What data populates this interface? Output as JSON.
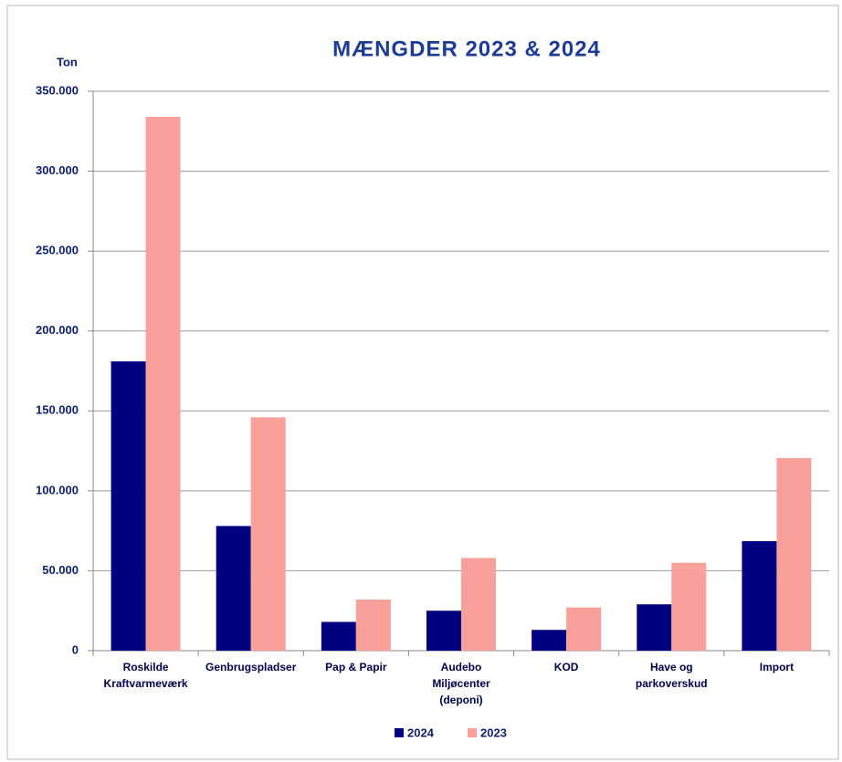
{
  "chart_data": {
    "type": "bar",
    "title": "MÆNGDER 2023 & 2024",
    "y_label": "Ton",
    "categories": [
      "Roskilde\nKraftvarmeværk",
      "Genbrugspladser",
      "Pap & Papir",
      "Audebo\nMiljøcenter\n(deponi)",
      "KOD",
      "Have og\nparkoverskud",
      "Import"
    ],
    "series": [
      {
        "name": "2024",
        "color": "#000080",
        "values": [
          181000,
          78000,
          18000,
          25000,
          13000,
          29000,
          68500
        ]
      },
      {
        "name": "2023",
        "color": "#f9a09a",
        "values": [
          334000,
          146000,
          32000,
          58000,
          27000,
          55000,
          120500
        ]
      }
    ],
    "ylim": [
      0,
      350000
    ],
    "yticks": [
      0,
      {
        "value": 50000,
        "label": "50.000"
      },
      {
        "value": 100000,
        "label": "100.000"
      },
      {
        "value": 150000,
        "label": "150.000"
      },
      {
        "value": 200000,
        "label": "200.000"
      },
      {
        "value": 250000,
        "label": "250.000"
      },
      {
        "value": 300000,
        "label": "300.000"
      },
      {
        "value": 350000,
        "label": "350.000"
      }
    ],
    "grid": true,
    "legend": "bottom"
  }
}
